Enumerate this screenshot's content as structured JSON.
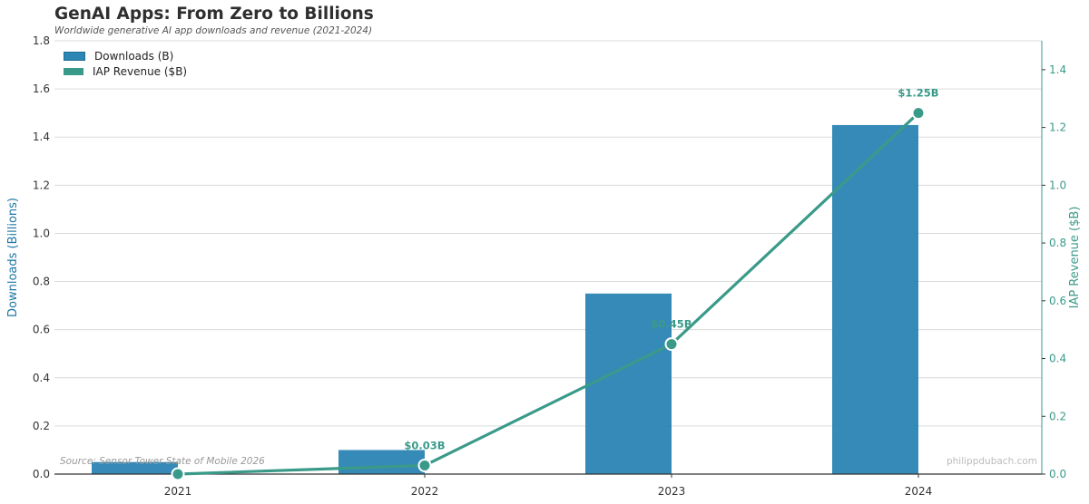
{
  "header": {
    "title": "GenAI Apps: From Zero to Billions",
    "subtitle": "Worldwide generative AI app downloads and revenue (2021-2024)"
  },
  "legend": {
    "items": [
      {
        "label": "Downloads (B)",
        "color": "#2e86b5"
      },
      {
        "label": "IAP Revenue ($B)",
        "color": "#3a9a8a"
      }
    ]
  },
  "footer": {
    "source": "Source: Sensor Tower State of Mobile 2026",
    "watermark": "philippdubach.com"
  },
  "chart_data": {
    "type": "bar",
    "title": "GenAI Apps: From Zero to Billions",
    "subtitle": "Worldwide generative AI app downloads and revenue (2021-2024)",
    "categories": [
      "2021",
      "2022",
      "2023",
      "2024"
    ],
    "series": [
      {
        "name": "Downloads (B)",
        "type": "bar",
        "axis": "left",
        "color": "#2e86b5",
        "values": [
          0.05,
          0.1,
          0.75,
          1.45
        ]
      },
      {
        "name": "IAP Revenue ($B)",
        "type": "line",
        "axis": "right",
        "color": "#3a9a8a",
        "values": [
          0.0,
          0.03,
          0.45,
          1.25
        ]
      }
    ],
    "annotations": [
      {
        "x": "2022",
        "text": "$0.03B"
      },
      {
        "x": "2023",
        "text": "$0.45B"
      },
      {
        "x": "2024",
        "text": "$1.25B"
      }
    ],
    "xlabel": "",
    "ylabel": "Downloads (Billions)",
    "ylabel_right": "IAP Revenue ($B)",
    "ylim": [
      0,
      1.8
    ],
    "ylim_right": [
      0,
      1.5
    ],
    "yticks": [
      "0.0",
      "0.2",
      "0.4",
      "0.6",
      "0.8",
      "1.0",
      "1.2",
      "1.4",
      "1.6",
      "1.8"
    ],
    "yticks_right": [
      "0.0",
      "0.2",
      "0.4",
      "0.6",
      "0.8",
      "1.0",
      "1.2",
      "1.4"
    ],
    "grid": true,
    "legend_position": "upper left",
    "source": "Source: Sensor Tower State of Mobile 2026"
  }
}
